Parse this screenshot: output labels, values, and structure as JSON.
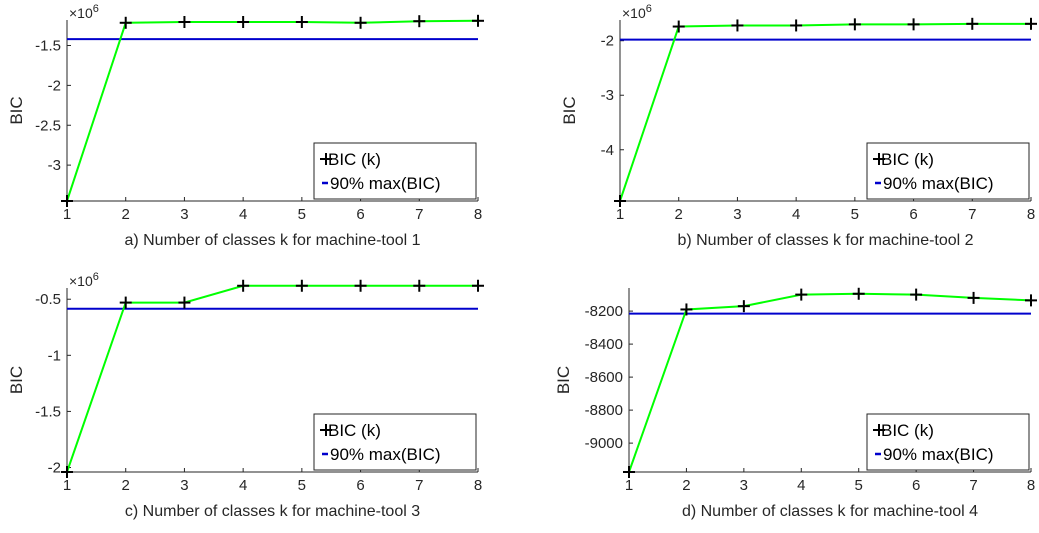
{
  "figure": {
    "background": "#ffffff",
    "axis_color": "#262626",
    "line_color": "#00ff00",
    "threshold_color": "#0000cc",
    "marker_color": "#000000",
    "marker_icon": "plus-marker"
  },
  "chart_data": [
    {
      "type": "line",
      "panel": "a",
      "xlabel": "a) Number of classes k for machine-tool 1",
      "ylabel": "BIC",
      "exponent_label": "×10",
      "exponent_power": "6",
      "x": [
        1,
        2,
        3,
        4,
        5,
        6,
        7,
        8
      ],
      "x_ticks": [
        "1",
        "2",
        "3",
        "4",
        "5",
        "6",
        "7",
        "8"
      ],
      "xlim": [
        1,
        8
      ],
      "ylim": [
        -3.45,
        -1.18
      ],
      "y_ticks": [
        -3,
        -2.5,
        -2,
        -1.5
      ],
      "y_tick_labels": [
        "-3",
        "-2.5",
        "-2",
        "-1.5"
      ],
      "series": [
        {
          "name": "BIC (k)",
          "values": [
            -3.45,
            -1.215,
            -1.205,
            -1.205,
            -1.205,
            -1.215,
            -1.195,
            -1.19
          ]
        },
        {
          "name": "90% max(BIC)",
          "values": [
            -1.42,
            -1.42,
            -1.42,
            -1.42,
            -1.42,
            -1.42,
            -1.42,
            -1.42
          ]
        }
      ],
      "legend": {
        "position": "bottom-right",
        "entries": [
          "BIC (k)",
          "90% max(BIC)"
        ]
      },
      "grid": false
    },
    {
      "type": "line",
      "panel": "b",
      "xlabel": "b) Number of classes k for machine-tool 2",
      "ylabel": "BIC",
      "exponent_label": "×10",
      "exponent_power": "6",
      "x": [
        1,
        2,
        3,
        4,
        5,
        6,
        7,
        8
      ],
      "x_ticks": [
        "1",
        "2",
        "3",
        "4",
        "5",
        "6",
        "7",
        "8"
      ],
      "xlim": [
        1,
        8
      ],
      "ylim": [
        -4.94,
        -1.62
      ],
      "y_ticks": [
        -4,
        -3,
        -2
      ],
      "y_tick_labels": [
        "-4",
        "-3",
        "-2"
      ],
      "series": [
        {
          "name": "BIC (k)",
          "values": [
            -4.94,
            -1.74,
            -1.72,
            -1.72,
            -1.7,
            -1.7,
            -1.69,
            -1.69
          ]
        },
        {
          "name": "90% max(BIC)",
          "values": [
            -1.98,
            -1.98,
            -1.98,
            -1.98,
            -1.98,
            -1.98,
            -1.98,
            -1.98
          ]
        }
      ],
      "legend": {
        "position": "bottom-right",
        "entries": [
          "BIC (k)",
          "90% max(BIC)"
        ]
      },
      "grid": false
    },
    {
      "type": "line",
      "panel": "c",
      "xlabel": "c) Number of classes k for machine-tool 3",
      "ylabel": "BIC",
      "exponent_label": "×10",
      "exponent_power": "6",
      "x": [
        1,
        2,
        3,
        4,
        5,
        6,
        7,
        8
      ],
      "x_ticks": [
        "1",
        "2",
        "3",
        "4",
        "5",
        "6",
        "7",
        "8"
      ],
      "xlim": [
        1,
        8
      ],
      "ylim": [
        -2.04,
        -0.4
      ],
      "y_ticks": [
        -2,
        -1.5,
        -1,
        -0.5
      ],
      "y_tick_labels": [
        "-2",
        "-1.5",
        "-1",
        "-0.5"
      ],
      "series": [
        {
          "name": "BIC (k)",
          "values": [
            -2.04,
            -0.53,
            -0.53,
            -0.38,
            -0.38,
            -0.38,
            -0.38,
            -0.38
          ]
        },
        {
          "name": "90% max(BIC)",
          "values": [
            -0.585,
            -0.585,
            -0.585,
            -0.585,
            -0.585,
            -0.585,
            -0.585,
            -0.585
          ]
        }
      ],
      "legend": {
        "position": "bottom-right",
        "entries": [
          "BIC (k)",
          "90% max(BIC)"
        ]
      },
      "grid": false
    },
    {
      "type": "line",
      "panel": "d",
      "xlabel": "d) Number of classes k for machine-tool 4",
      "ylabel": "BIC",
      "x": [
        1,
        2,
        3,
        4,
        5,
        6,
        7,
        8
      ],
      "x_ticks": [
        "1",
        "2",
        "3",
        "4",
        "5",
        "6",
        "7",
        "8"
      ],
      "xlim": [
        1,
        8
      ],
      "ylim": [
        -9175,
        -8060
      ],
      "y_ticks": [
        -9000,
        -8800,
        -8600,
        -8400,
        -8200
      ],
      "y_tick_labels": [
        "-9000",
        "-8800",
        "-8600",
        "-8400",
        "-8200"
      ],
      "series": [
        {
          "name": "BIC (k)",
          "values": [
            -9175,
            -8190,
            -8170,
            -8100,
            -8095,
            -8100,
            -8120,
            -8135
          ]
        },
        {
          "name": "90% max(BIC)",
          "values": [
            -8215,
            -8215,
            -8215,
            -8215,
            -8215,
            -8215,
            -8215,
            -8215
          ]
        }
      ],
      "legend": {
        "position": "bottom-right",
        "entries": [
          "BIC (k)",
          "90% max(BIC)"
        ]
      },
      "grid": false
    }
  ]
}
